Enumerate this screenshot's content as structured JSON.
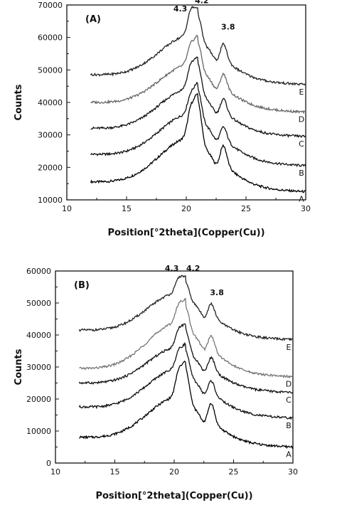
{
  "chart_data": [
    {
      "type": "line",
      "panel_label": "(A)",
      "xlabel": "Position[°2theta](Copper(Cu))",
      "ylabel": "Counts",
      "xlim": [
        10,
        30
      ],
      "ylim": [
        10000,
        70000
      ],
      "xticks": [
        10,
        15,
        20,
        25,
        30
      ],
      "yticks": [
        10000,
        20000,
        30000,
        40000,
        50000,
        60000,
        70000
      ],
      "grid": false,
      "annotations": [
        {
          "text": "4.3",
          "x": 19.5,
          "y": 68000
        },
        {
          "text": "4.2",
          "x": 21.3,
          "y": 70500
        },
        {
          "text": "3.8",
          "x": 23.5,
          "y": 62500
        }
      ],
      "series": [
        {
          "name": "A",
          "color": "#000000",
          "base": 15500,
          "end": 12500,
          "hump": 15000,
          "p1": 9000,
          "p2": 13000,
          "p3": 6500,
          "label_value": 12500
        },
        {
          "name": "B",
          "color": "#111111",
          "base": 24000,
          "end": 20500,
          "hump": 14000,
          "p1": 6000,
          "p2": 9500,
          "p3": 4500,
          "label_value": 20500
        },
        {
          "name": "C",
          "color": "#111111",
          "base": 32000,
          "end": 29500,
          "hump": 13500,
          "p1": 7000,
          "p2": 9000,
          "p3": 4800,
          "label_value": 29500
        },
        {
          "name": "D",
          "color": "#666666",
          "base": 40000,
          "end": 37000,
          "hump": 13000,
          "p1": 6000,
          "p2": 8500,
          "p3": 5000,
          "label_value": 37000
        },
        {
          "name": "E",
          "color": "#222222",
          "base": 48500,
          "end": 45500,
          "hump": 13500,
          "p1": 7500,
          "p2": 8000,
          "p3": 5500,
          "label_value": 45500
        }
      ]
    },
    {
      "type": "line",
      "panel_label": "(B)",
      "xlabel": "Position[°2theta](Copper(Cu))",
      "ylabel": "Counts",
      "xlim": [
        10,
        30
      ],
      "ylim": [
        0,
        60000
      ],
      "xticks": [
        10,
        15,
        20,
        25,
        30
      ],
      "yticks": [
        0,
        10000,
        20000,
        30000,
        40000,
        50000,
        60000
      ],
      "grid": false,
      "annotations": [
        {
          "text": "4.3",
          "x": 19.8,
          "y": 60000
        },
        {
          "text": "4.2",
          "x": 21.6,
          "y": 60000
        },
        {
          "text": "3.8",
          "x": 23.6,
          "y": 52500
        }
      ],
      "series": [
        {
          "name": "A",
          "color": "#000000",
          "base": 8000,
          "end": 5000,
          "hump": 14000,
          "p1": 8000,
          "p2": 10500,
          "p3": 6500,
          "label_value": 5000
        },
        {
          "name": "B",
          "color": "#111111",
          "base": 17500,
          "end": 14000,
          "hump": 13500,
          "p1": 5500,
          "p2": 7500,
          "p3": 4500,
          "label_value": 14000
        },
        {
          "name": "C",
          "color": "#111111",
          "base": 25000,
          "end": 22000,
          "hump": 12500,
          "p1": 5500,
          "p2": 7000,
          "p3": 4500,
          "label_value": 22000
        },
        {
          "name": "D",
          "color": "#777777",
          "base": 29500,
          "end": 27000,
          "hump": 15500,
          "p1": 5500,
          "p2": 7000,
          "p3": 5000,
          "label_value": 27000
        },
        {
          "name": "E",
          "color": "#222222",
          "base": 41500,
          "end": 38500,
          "hump": 13000,
          "p1": 4500,
          "p2": 5000,
          "p3": 4500,
          "label_value": 38500
        }
      ]
    }
  ]
}
